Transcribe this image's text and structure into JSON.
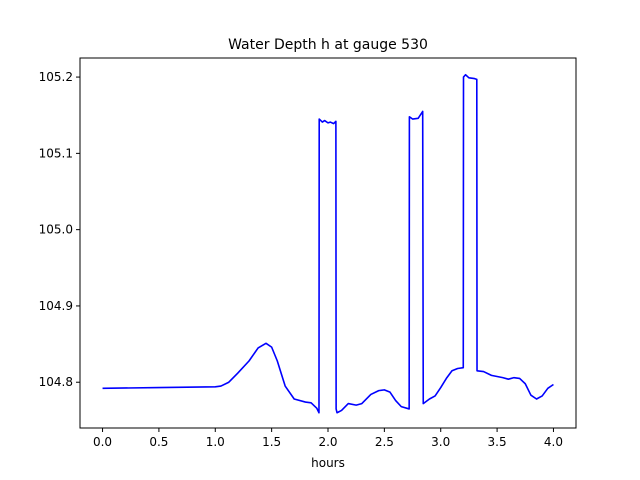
{
  "chart_data": {
    "type": "line",
    "title": "Water Depth h at gauge 530",
    "xlabel": "hours",
    "ylabel": "",
    "xlim": [
      -0.2,
      4.2
    ],
    "ylim": [
      104.74,
      105.225
    ],
    "grid": false,
    "x_ticks": [
      0.0,
      0.5,
      1.0,
      1.5,
      2.0,
      2.5,
      3.0,
      3.5,
      4.0
    ],
    "x_tick_labels": [
      "0.0",
      "0.5",
      "1.0",
      "1.5",
      "2.0",
      "2.5",
      "3.0",
      "3.5",
      "4.0"
    ],
    "y_ticks": [
      104.8,
      104.9,
      105.0,
      105.1,
      105.2
    ],
    "y_tick_labels": [
      "104.8",
      "104.9",
      "105.0",
      "105.1",
      "105.2"
    ],
    "series": [
      {
        "color": "#0000ff",
        "points": [
          [
            0.0,
            104.792
          ],
          [
            0.5,
            104.793
          ],
          [
            1.0,
            104.794
          ],
          [
            1.05,
            104.795
          ],
          [
            1.12,
            104.8
          ],
          [
            1.2,
            104.812
          ],
          [
            1.3,
            104.828
          ],
          [
            1.38,
            104.845
          ],
          [
            1.45,
            104.851
          ],
          [
            1.5,
            104.846
          ],
          [
            1.55,
            104.828
          ],
          [
            1.62,
            104.795
          ],
          [
            1.7,
            104.778
          ],
          [
            1.8,
            104.774
          ],
          [
            1.85,
            104.773
          ],
          [
            1.9,
            104.766
          ],
          [
            1.92,
            104.76
          ],
          [
            1.922,
            105.145
          ],
          [
            1.95,
            105.141
          ],
          [
            1.97,
            105.143
          ],
          [
            2.0,
            105.14
          ],
          [
            2.02,
            105.141
          ],
          [
            2.05,
            105.139
          ],
          [
            2.07,
            105.142
          ],
          [
            2.072,
            104.765
          ],
          [
            2.08,
            104.76
          ],
          [
            2.12,
            104.763
          ],
          [
            2.18,
            104.772
          ],
          [
            2.25,
            104.77
          ],
          [
            2.3,
            104.772
          ],
          [
            2.38,
            104.784
          ],
          [
            2.45,
            104.789
          ],
          [
            2.5,
            104.79
          ],
          [
            2.55,
            104.787
          ],
          [
            2.6,
            104.776
          ],
          [
            2.65,
            104.768
          ],
          [
            2.72,
            104.765
          ],
          [
            2.722,
            105.148
          ],
          [
            2.75,
            105.145
          ],
          [
            2.8,
            105.146
          ],
          [
            2.84,
            105.155
          ],
          [
            2.845,
            104.772
          ],
          [
            2.9,
            104.778
          ],
          [
            2.95,
            104.782
          ],
          [
            3.0,
            104.793
          ],
          [
            3.05,
            104.805
          ],
          [
            3.1,
            104.815
          ],
          [
            3.15,
            104.818
          ],
          [
            3.2,
            104.819
          ],
          [
            3.202,
            105.2
          ],
          [
            3.22,
            105.203
          ],
          [
            3.25,
            105.199
          ],
          [
            3.3,
            105.198
          ],
          [
            3.32,
            105.197
          ],
          [
            3.322,
            104.815
          ],
          [
            3.38,
            104.814
          ],
          [
            3.45,
            104.809
          ],
          [
            3.55,
            104.806
          ],
          [
            3.6,
            104.804
          ],
          [
            3.65,
            104.806
          ],
          [
            3.7,
            104.805
          ],
          [
            3.75,
            104.798
          ],
          [
            3.8,
            104.783
          ],
          [
            3.85,
            104.778
          ],
          [
            3.9,
            104.782
          ],
          [
            3.95,
            104.792
          ],
          [
            4.0,
            104.797
          ]
        ]
      }
    ]
  }
}
